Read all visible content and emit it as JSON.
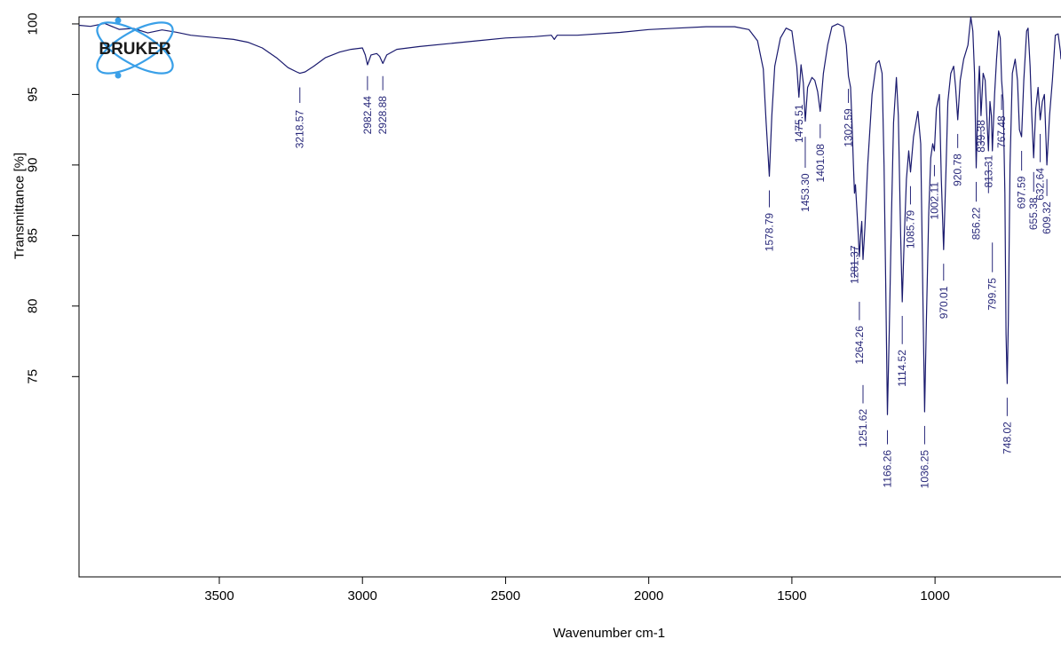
{
  "chart_data": {
    "type": "line",
    "xlabel": "Wavenumber cm-1",
    "ylabel": "Transmittance [%]",
    "xlim": [
      3990,
      560
    ],
    "ylim": [
      60.8,
      100.5
    ],
    "x_reversed": true,
    "x_ticks": [
      3500,
      3000,
      2500,
      2000,
      1500,
      1000
    ],
    "y_ticks": [
      100,
      95,
      90,
      85,
      80,
      75
    ],
    "grid": false,
    "line_color": "#1a1a6e",
    "label_color": "#28287a",
    "series": [
      {
        "points": [
          [
            3990,
            99.9
          ],
          [
            3950,
            99.7
          ],
          [
            3900,
            99.9
          ],
          [
            3850,
            99.6
          ],
          [
            3800,
            99.8
          ],
          [
            3750,
            99.5
          ],
          [
            3700,
            99.6
          ],
          [
            3650,
            99.3
          ],
          [
            3600,
            99.2
          ],
          [
            3550,
            99.1
          ],
          [
            3500,
            99.0
          ],
          [
            3450,
            98.9
          ],
          [
            3400,
            98.7
          ],
          [
            3350,
            98.3
          ],
          [
            3300,
            97.6
          ],
          [
            3260,
            96.9
          ],
          [
            3230,
            96.6
          ],
          [
            3218.57,
            96.5
          ],
          [
            3200,
            96.6
          ],
          [
            3170,
            97.0
          ],
          [
            3130,
            97.6
          ],
          [
            3080,
            98.0
          ],
          [
            3040,
            98.2
          ],
          [
            3000,
            98.3
          ],
          [
            2990,
            97.8
          ],
          [
            2982.44,
            97.1
          ],
          [
            2970,
            97.8
          ],
          [
            2950,
            97.9
          ],
          [
            2940,
            97.7
          ],
          [
            2928.88,
            97.2
          ],
          [
            2915,
            97.8
          ],
          [
            2880,
            98.2
          ],
          [
            2800,
            98.4
          ],
          [
            2700,
            98.6
          ],
          [
            2600,
            98.8
          ],
          [
            2500,
            99.0
          ],
          [
            2400,
            99.1
          ],
          [
            2340,
            99.2
          ],
          [
            2330,
            98.9
          ],
          [
            2320,
            99.2
          ],
          [
            2250,
            99.2
          ],
          [
            2100,
            99.4
          ],
          [
            2000,
            99.6
          ],
          [
            1900,
            99.7
          ],
          [
            1800,
            99.8
          ],
          [
            1700,
            99.8
          ],
          [
            1650,
            99.6
          ],
          [
            1620,
            98.8
          ],
          [
            1600,
            96.8
          ],
          [
            1590,
            93.0
          ],
          [
            1578.79,
            89.2
          ],
          [
            1570,
            93.5
          ],
          [
            1560,
            97.0
          ],
          [
            1540,
            99.0
          ],
          [
            1520,
            99.7
          ],
          [
            1500,
            99.5
          ],
          [
            1490,
            98.0
          ],
          [
            1483,
            97.0
          ],
          [
            1475.51,
            94.8
          ],
          [
            1468,
            97.1
          ],
          [
            1460,
            95.8
          ],
          [
            1453.3,
            93.1
          ],
          [
            1445,
            95.5
          ],
          [
            1430,
            96.2
          ],
          [
            1420,
            96.0
          ],
          [
            1410,
            95.2
          ],
          [
            1401.08,
            93.8
          ],
          [
            1390,
            96.5
          ],
          [
            1375,
            98.5
          ],
          [
            1360,
            99.8
          ],
          [
            1340,
            100.0
          ],
          [
            1320,
            99.8
          ],
          [
            1310,
            98.5
          ],
          [
            1302.59,
            96.3
          ],
          [
            1295,
            95.5
          ],
          [
            1290,
            93.0
          ],
          [
            1285,
            90.0
          ],
          [
            1281.37,
            88.0
          ],
          [
            1278,
            88.6
          ],
          [
            1272,
            86.5
          ],
          [
            1268,
            85.0
          ],
          [
            1264.26,
            83.5
          ],
          [
            1260,
            85.0
          ],
          [
            1256,
            86.0
          ],
          [
            1251.62,
            83.3
          ],
          [
            1245,
            85.5
          ],
          [
            1235,
            90.0
          ],
          [
            1220,
            95.0
          ],
          [
            1205,
            97.2
          ],
          [
            1195,
            97.4
          ],
          [
            1185,
            96.5
          ],
          [
            1178,
            90.0
          ],
          [
            1172,
            81.0
          ],
          [
            1166.26,
            72.3
          ],
          [
            1160,
            78.0
          ],
          [
            1152,
            86.5
          ],
          [
            1145,
            93.0
          ],
          [
            1135,
            96.2
          ],
          [
            1128,
            93.5
          ],
          [
            1120,
            85.0
          ],
          [
            1114.52,
            80.3
          ],
          [
            1108,
            84.5
          ],
          [
            1100,
            89.0
          ],
          [
            1092,
            91.0
          ],
          [
            1085.79,
            89.5
          ],
          [
            1075,
            92.0
          ],
          [
            1060,
            93.8
          ],
          [
            1050,
            91.5
          ],
          [
            1042,
            80.0
          ],
          [
            1036.25,
            72.5
          ],
          [
            1030,
            79.0
          ],
          [
            1022,
            86.5
          ],
          [
            1015,
            90.5
          ],
          [
            1008,
            91.5
          ],
          [
            1002.11,
            91.0
          ],
          [
            995,
            94.0
          ],
          [
            985,
            95.0
          ],
          [
            978,
            89.0
          ],
          [
            970.01,
            84.0
          ],
          [
            962,
            89.5
          ],
          [
            955,
            94.5
          ],
          [
            945,
            96.5
          ],
          [
            935,
            97.0
          ],
          [
            928,
            95.5
          ],
          [
            920.78,
            93.2
          ],
          [
            912,
            96.0
          ],
          [
            900,
            97.5
          ],
          [
            885,
            98.5
          ],
          [
            875,
            100.5
          ],
          [
            868,
            99.5
          ],
          [
            862,
            96.5
          ],
          [
            856.22,
            89.8
          ],
          [
            850,
            95.0
          ],
          [
            845,
            97.0
          ],
          [
            839.38,
            93.5
          ],
          [
            832,
            96.5
          ],
          [
            825,
            96.0
          ],
          [
            818,
            93.0
          ],
          [
            813.31,
            91.0
          ],
          [
            808,
            94.5
          ],
          [
            803,
            93.5
          ],
          [
            799.75,
            91.0
          ],
          [
            792,
            95.0
          ],
          [
            785,
            97.5
          ],
          [
            778,
            99.5
          ],
          [
            772,
            99.0
          ],
          [
            767.48,
            96.0
          ],
          [
            762,
            94.5
          ],
          [
            756,
            88.0
          ],
          [
            752,
            78.0
          ],
          [
            748.02,
            74.5
          ],
          [
            744,
            79.0
          ],
          [
            738,
            90.0
          ],
          [
            730,
            96.5
          ],
          [
            720,
            97.5
          ],
          [
            712,
            96.0
          ],
          [
            705,
            92.5
          ],
          [
            697.59,
            92.0
          ],
          [
            690,
            96.0
          ],
          [
            680,
            99.5
          ],
          [
            675,
            99.7
          ],
          [
            668,
            97.0
          ],
          [
            662,
            93.5
          ],
          [
            655.38,
            90.5
          ],
          [
            648,
            94.0
          ],
          [
            640,
            95.5
          ],
          [
            632.64,
            93.2
          ],
          [
            625,
            94.5
          ],
          [
            618,
            95.0
          ],
          [
            609.32,
            90.0
          ],
          [
            600,
            93.5
          ],
          [
            590,
            96.0
          ],
          [
            580,
            99.2
          ],
          [
            570,
            99.3
          ],
          [
            562,
            98.0
          ],
          [
            560,
            97.5
          ]
        ]
      }
    ],
    "peaks": [
      {
        "x": 3218.57,
        "label": "3218.57",
        "tip": 95.5,
        "lineTop": 94.4,
        "textTop": 93.9,
        "textBottom": 91.2
      },
      {
        "x": 2982.44,
        "label": "2982.44",
        "tip": 96.3,
        "lineTop": 95.3,
        "textTop": 94.9,
        "textBottom": 92.2
      },
      {
        "x": 2928.88,
        "label": "2928.88",
        "tip": 96.3,
        "lineTop": 95.3,
        "textTop": 94.9,
        "textBottom": 92.2
      },
      {
        "x": 1578.79,
        "label": "1578.79",
        "tip": 88.2,
        "lineTop": 87.0,
        "textTop": 86.6,
        "textBottom": 83.9
      },
      {
        "x": 1475.51,
        "label": "1475.51",
        "tip": 93.2,
        "lineTop": 92.4,
        "textTop": 94.3,
        "textBottom": 91.6
      },
      {
        "x": 1453.3,
        "label": "1453.30",
        "tip": 92.0,
        "lineTop": 89.8,
        "textTop": 89.4,
        "textBottom": 86.8
      },
      {
        "x": 1401.08,
        "label": "1401.08",
        "tip": 92.9,
        "lineTop": 91.9,
        "textTop": 91.5,
        "textBottom": 88.9
      },
      {
        "x": 1302.59,
        "label": "1302.59",
        "tip": 95.4,
        "lineTop": 94.4,
        "textTop": 94.0,
        "textBottom": 91.4
      },
      {
        "x": 1281.37,
        "label": "1281.37",
        "tip": 84.2,
        "lineTop": 82.0,
        "textTop": 84.3,
        "textBottom": 81.7
      },
      {
        "x": 1264.26,
        "label": "1264.26",
        "tip": 80.3,
        "lineTop": 79.0,
        "textTop": 78.6,
        "textBottom": 76.0
      },
      {
        "x": 1251.62,
        "label": "1251.62",
        "tip": 74.4,
        "lineTop": 73.1,
        "textTop": 72.7,
        "textBottom": 70.1
      },
      {
        "x": 1166.26,
        "label": "1166.26",
        "tip": 71.2,
        "lineTop": 70.2,
        "textTop": 69.8,
        "textBottom": 67.2
      },
      {
        "x": 1114.52,
        "label": "1114.52",
        "tip": 79.3,
        "lineTop": 77.3,
        "textTop": 76.9,
        "textBottom": 74.3
      },
      {
        "x": 1085.79,
        "label": "1085.79",
        "tip": 88.5,
        "lineTop": 87.2,
        "textTop": 86.8,
        "textBottom": 84.2
      },
      {
        "x": 1036.25,
        "label": "1036.25",
        "tip": 71.5,
        "lineTop": 70.2,
        "textTop": 69.8,
        "textBottom": 67.2
      },
      {
        "x": 1002.11,
        "label": "1002.11",
        "tip": 90.0,
        "lineTop": 89.2,
        "textTop": 88.8,
        "textBottom": 86.1
      },
      {
        "x": 970.01,
        "label": "970.01",
        "tip": 83.0,
        "lineTop": 81.8,
        "textTop": 81.4,
        "textBottom": 79.3
      },
      {
        "x": 920.78,
        "label": "920.78",
        "tip": 92.2,
        "lineTop": 91.2,
        "textTop": 90.8,
        "textBottom": 88.7
      },
      {
        "x": 856.22,
        "label": "856.22",
        "tip": 88.8,
        "lineTop": 87.4,
        "textTop": 87.0,
        "textBottom": 84.9
      },
      {
        "x": 839.38,
        "label": "839.38",
        "tip": 92.5,
        "lineTop": 91.4,
        "textTop": 93.2,
        "textBottom": 91.1
      },
      {
        "x": 813.31,
        "label": "813.31",
        "tip": 90.0,
        "lineTop": 88.0,
        "textTop": 90.7,
        "textBottom": 88.6
      },
      {
        "x": 799.75,
        "label": "799.75",
        "tip": 84.5,
        "lineTop": 82.4,
        "textTop": 82.0,
        "textBottom": 79.9
      },
      {
        "x": 767.48,
        "label": "767.48",
        "tip": 95.0,
        "lineTop": 93.9,
        "textTop": 93.5,
        "textBottom": 91.4
      },
      {
        "x": 748.02,
        "label": "748.02",
        "tip": 73.5,
        "lineTop": 72.2,
        "textTop": 71.8,
        "textBottom": 69.7
      },
      {
        "x": 697.59,
        "label": "697.59",
        "tip": 91.0,
        "lineTop": 89.6,
        "textTop": 89.2,
        "textBottom": 87.1
      },
      {
        "x": 655.38,
        "label": "655.38",
        "tip": 89.5,
        "lineTop": 88.1,
        "textTop": 87.7,
        "textBottom": 85.6
      },
      {
        "x": 632.64,
        "label": "632.64",
        "tip": 92.2,
        "lineTop": 90.2,
        "textTop": 89.8,
        "textBottom": 87.7
      },
      {
        "x": 609.32,
        "label": "609.32",
        "tip": 89.0,
        "lineTop": 87.8,
        "textTop": 87.4,
        "textBottom": 85.3
      }
    ]
  },
  "logo": {
    "text": "BRUKER",
    "ring_color": "#3aa0e8",
    "text_color": "#1a1a1a"
  }
}
